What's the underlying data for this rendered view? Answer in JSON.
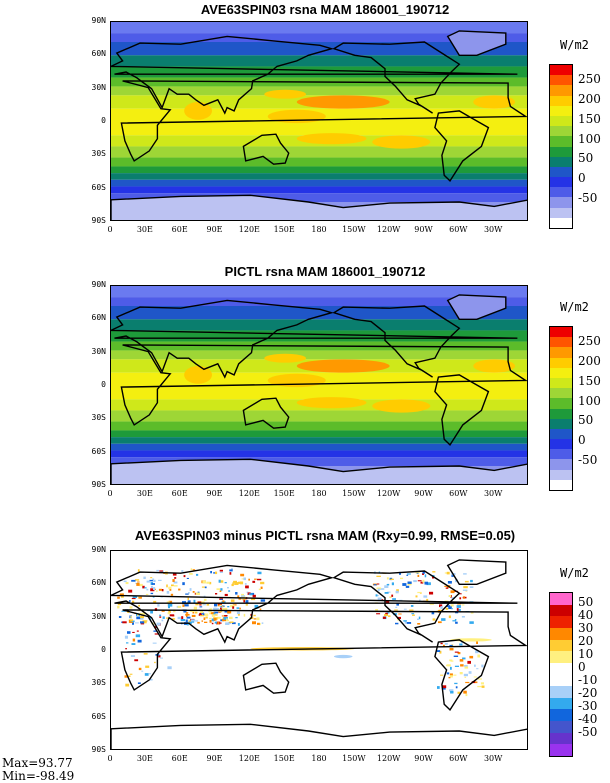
{
  "panels": [
    {
      "title": "AVE63SPIN03 rsna MAM 186001_190712",
      "unit": "W/m2",
      "cbar_labels": [
        "250",
        "200",
        "150",
        "100",
        "50",
        "0",
        "-50"
      ],
      "cbar_colors": [
        "#ee0000",
        "#ff5500",
        "#ff9900",
        "#ffcc00",
        "#f4ef10",
        "#cfe81a",
        "#9ed636",
        "#5cbc2a",
        "#1e9a3a",
        "#0a7e6e",
        "#1f56c8",
        "#2433e6",
        "#4e5ce8",
        "#8d95ec",
        "#bcc2f2",
        "#ffffff"
      ],
      "kind": "mean"
    },
    {
      "title": "PICTL rsna MAM 186001_190712",
      "unit": "W/m2",
      "cbar_labels": [
        "250",
        "200",
        "150",
        "100",
        "50",
        "0",
        "-50"
      ],
      "cbar_colors": [
        "#ee0000",
        "#ff5500",
        "#ff9900",
        "#ffcc00",
        "#f4ef10",
        "#cfe81a",
        "#9ed636",
        "#5cbc2a",
        "#1e9a3a",
        "#0a7e6e",
        "#1f56c8",
        "#2433e6",
        "#4e5ce8",
        "#8d95ec",
        "#bcc2f2",
        "#ffffff"
      ],
      "kind": "mean"
    },
    {
      "title": "AVE63SPIN03 minus PICTL rsna MAM (Rxy=0.99, RMSE=0.05)",
      "unit": "W/m2",
      "cbar_labels": [
        "50",
        "40",
        "30",
        "20",
        "10",
        "0",
        "-10",
        "-20",
        "-30",
        "-40",
        "-50"
      ],
      "cbar_colors": [
        "#ff66cc",
        "#cc0000",
        "#ee2200",
        "#ff8800",
        "#ffcc33",
        "#fff080",
        "#ffffff",
        "#ffffff",
        "#a8d0f8",
        "#33aaee",
        "#1166dd",
        "#4455cc",
        "#6633cc",
        "#9933ee"
      ],
      "kind": "diff"
    }
  ],
  "lat_labels": [
    "90N",
    "60N",
    "30N",
    "0",
    "30S",
    "60S",
    "90S"
  ],
  "lon_labels": [
    "0",
    "30E",
    "60E",
    "90E",
    "120E",
    "150E",
    "180",
    "150W",
    "120W",
    "90W",
    "60W",
    "30W"
  ],
  "stats": {
    "max": "Max=93.77",
    "min": "Min=-98.49"
  }
}
